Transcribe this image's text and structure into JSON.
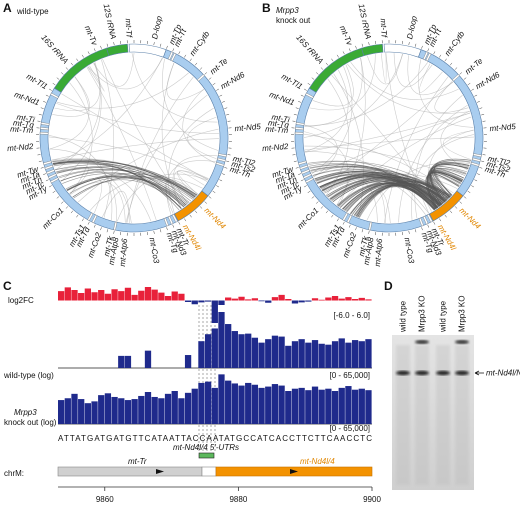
{
  "panel_a": {
    "label": "A",
    "title": "wild-type"
  },
  "panel_b": {
    "label": "B",
    "title_gene": "Mrpp3",
    "title_rest": "knock out"
  },
  "genes": [
    "16S rRNA",
    "mt-Tv",
    "12S rRNA",
    "mt-Tf",
    "D-loop",
    "mt-Tp",
    "mt-Tt",
    "mt-Cytb",
    "mt-Te",
    "mt-Nd6",
    "mt-Nd5",
    "mt-Tl2",
    "mt-Ts2",
    "mt-Th",
    "mt-Nd4",
    "mt-Nd4l",
    "mt-Tr",
    "mt-Nd3",
    "mt-Tg",
    "mt-Co3",
    "mt-Atp6",
    "mt-Atp8",
    "mt-Tk",
    "mt-Co2",
    "mt-Td",
    "mt-Ts1",
    "mt-Co1",
    "mt-Ty",
    "mt-Tc",
    "mt-Tn",
    "mt-Ta",
    "mt-Tw",
    "mt-Nd2",
    "mt-Tm",
    "mt-Tq",
    "mt-Ti",
    "mt-Nd1",
    "mt-Tl1"
  ],
  "panel_c": {
    "label": "C",
    "xlim": [
      9853,
      9900
    ],
    "xticks": [
      9860,
      9880,
      9900
    ],
    "tracks": [
      {
        "name": "log2FC",
        "range_label": "[-6.0 - 6.0]",
        "ylim": [
          -6,
          6
        ],
        "log": false,
        "values": [
          2.5,
          3.5,
          2.8,
          2.0,
          3.2,
          2.2,
          2.8,
          1.8,
          3.0,
          2.5,
          3.4,
          1.5,
          2.6,
          3.6,
          2.9,
          2.1,
          1.2,
          2.4,
          1.8,
          -0.4,
          -1.0,
          -0.5,
          -0.3,
          -6.0,
          -1.2,
          0.8,
          0.5,
          1.0,
          0.3,
          0.6,
          -0.2,
          -0.6,
          0.9,
          1.5,
          0.4,
          -0.8,
          -0.5,
          -0.3,
          0.6,
          0.2,
          0.8,
          1.2,
          0.5,
          0.9,
          0.4,
          0.7,
          0.3
        ]
      },
      {
        "name": "wild-type (log)",
        "range_label": "[0 - 65,000]",
        "ylim": [
          0,
          65000
        ],
        "log": true,
        "values": [
          0,
          0,
          0,
          0,
          0,
          0,
          0,
          0,
          0,
          10,
          10,
          0,
          0,
          30,
          0,
          0,
          0,
          0,
          0,
          12,
          0,
          200,
          800,
          2500,
          65000,
          6000,
          1500,
          800,
          900,
          400,
          150,
          300,
          600,
          500,
          80,
          200,
          300,
          150,
          250,
          120,
          100,
          200,
          350,
          150,
          250,
          200,
          300
        ]
      },
      {
        "name_gene": "Mrpp3",
        "name": "knock out (log)",
        "range_label": "[0 - 65,000]",
        "ylim": [
          0,
          65000
        ],
        "log": true,
        "values": [
          200,
          300,
          800,
          250,
          100,
          150,
          600,
          900,
          400,
          300,
          200,
          250,
          500,
          1200,
          400,
          300,
          800,
          1500,
          300,
          1000,
          2500,
          9000,
          12000,
          3000,
          60000,
          15000,
          8000,
          5000,
          9000,
          6000,
          3000,
          4000,
          7000,
          5000,
          1500,
          2500,
          3000,
          1800,
          4000,
          2000,
          2500,
          1500,
          3000,
          4500,
          2000,
          2500,
          1800
        ]
      }
    ],
    "sequence": "ATTATGATGATGTTCATAATTACCAATATGCCATCACCTTCTTCAACCTC",
    "utr_label": "mt-Nd4l/4 5'-UTRs",
    "chrom": "chrM:",
    "gene_left": "mt-Tr",
    "gene_right": "mt-Nd4l/4"
  },
  "panel_d": {
    "label": "D",
    "lanes": [
      "wild type",
      "Mrpp3 KO",
      "wild type",
      "Mrpp3 KO"
    ],
    "band_label": "mt-Nd4l/Nd4"
  }
}
